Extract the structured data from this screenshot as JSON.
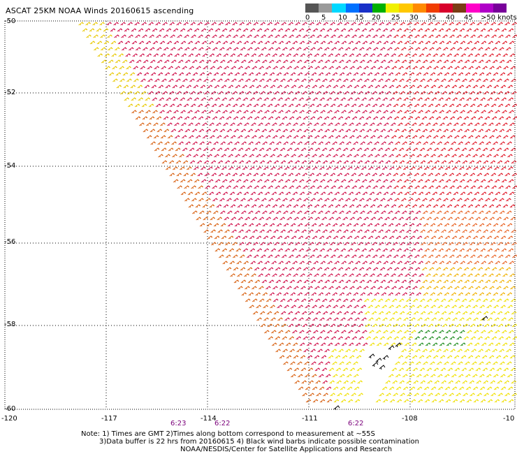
{
  "title": "ASCAT 25KM NOAA Winds 20160615 ascending",
  "legend": {
    "colors": [
      "#555555",
      "#9a9a9a",
      "#00d8ff",
      "#0070ff",
      "#1830c8",
      "#00b000",
      "#f0f000",
      "#ffc800",
      "#ff8a00",
      "#f03c00",
      "#d8002c",
      "#7a3c14",
      "#ff00c8",
      "#b000c8",
      "#78009a"
    ],
    "tick_labels": [
      "0",
      "5",
      "10",
      "15",
      "20",
      "25",
      "30",
      "35",
      "40",
      "45",
      ">50 knots"
    ]
  },
  "latitude_labels": [
    "-50",
    "-52",
    "-54",
    "-56",
    "-58",
    "-60"
  ],
  "longitude_labels": [
    "-120",
    "-117",
    "-114",
    "-111",
    "-108",
    "-10"
  ],
  "time_labels": [
    "6:23",
    "6:22",
    "6:22"
  ],
  "notes": [
    "Note: 1) Times are GMT 2)Times along bottom correspond to measurement at ~55S",
    "3)Data buffer is 22 hrs from 20160615 4) Black wind barbs indicate possible contamination",
    "NOAA/NESDIS/Center for Satellite Applications and Research"
  ]
}
